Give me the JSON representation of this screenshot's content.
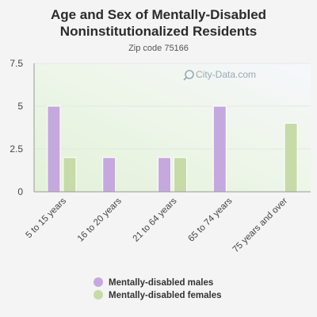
{
  "header": {
    "title_line1": "Age and Sex of Mentally-Disabled",
    "title_line2": "Noninstitutionalized Residents",
    "subtitle": "Zip code 75166"
  },
  "watermark": {
    "text": "City-Data.com",
    "icon": "magnifier-icon"
  },
  "colors": {
    "males": "#c5a8de",
    "females": "#c6dba8",
    "axis": "#888888",
    "grid": "#e3e8e3"
  },
  "chart_data": {
    "type": "bar",
    "title": "Age and Sex of Mentally-Disabled Noninstitutionalized Residents",
    "subtitle": "Zip code 75166",
    "categories": [
      "5 to 15 years",
      "16 to 20 years",
      "21 to 64 years",
      "65 to 74 years",
      "75 years and over"
    ],
    "series": [
      {
        "name": "Mentally-disabled males",
        "values": [
          5,
          2,
          2,
          5,
          0
        ]
      },
      {
        "name": "Mentally-disabled females",
        "values": [
          2,
          0,
          2,
          0,
          4
        ]
      }
    ],
    "ylim": [
      0,
      7.5
    ],
    "yticks": [
      "0",
      "2.5",
      "5",
      "7.5"
    ],
    "legend_position": "bottom"
  }
}
